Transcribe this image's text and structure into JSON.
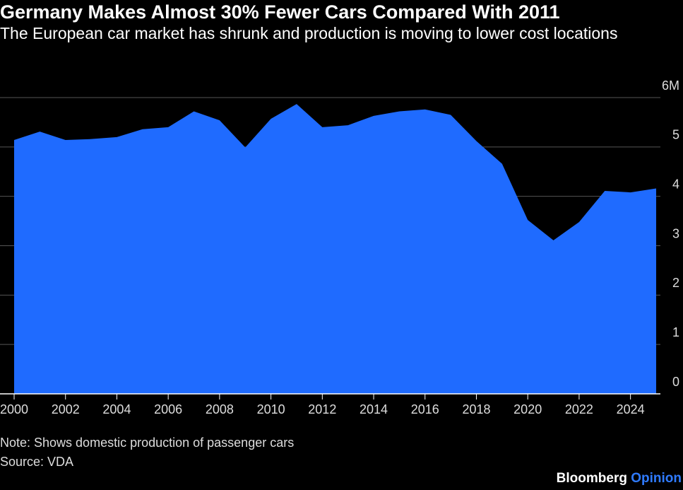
{
  "chart_data": {
    "type": "area",
    "title": "Germany Makes Almost 30% Fewer Cars Compared With 2011",
    "subtitle": "The European car market has shrunk and production is moving to lower cost locations",
    "note": "Note: Shows domestic production of passenger cars",
    "source": "Source: VDA",
    "brand": "Bloomberg",
    "brand_sub": "Opinion",
    "x": [
      2000,
      2001,
      2002,
      2003,
      2004,
      2005,
      2006,
      2007,
      2008,
      2009,
      2010,
      2011,
      2012,
      2013,
      2014,
      2015,
      2016,
      2017,
      2018,
      2019,
      2020,
      2021,
      2022,
      2023,
      2024,
      2025
    ],
    "values": [
      5.14,
      5.31,
      5.14,
      5.16,
      5.2,
      5.36,
      5.4,
      5.72,
      5.54,
      4.99,
      5.57,
      5.87,
      5.4,
      5.44,
      5.63,
      5.72,
      5.76,
      5.65,
      5.12,
      4.66,
      3.52,
      3.11,
      3.48,
      4.11,
      4.08,
      4.16
    ],
    "color": "#1f6bff",
    "xlim": [
      2000,
      2025
    ],
    "xticks": [
      2000,
      2002,
      2004,
      2006,
      2008,
      2010,
      2012,
      2014,
      2016,
      2018,
      2020,
      2022,
      2024
    ],
    "ylim": [
      0,
      6
    ],
    "yticks": [
      0,
      1,
      2,
      3,
      4,
      5,
      {
        "value": 6,
        "label": "6M"
      }
    ],
    "grid": true
  }
}
